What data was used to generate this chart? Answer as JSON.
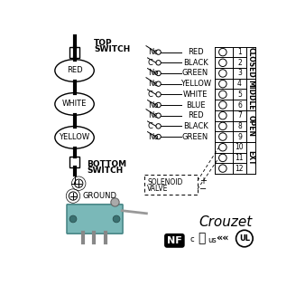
{
  "bg_color": "#ffffff",
  "wire_rows": [
    {
      "label": "Nc",
      "wire": "RED",
      "num": "1"
    },
    {
      "label": "C",
      "wire": "BLACK",
      "num": "2"
    },
    {
      "label": "No",
      "wire": "GREEN",
      "num": "3"
    },
    {
      "label": "Nc",
      "wire": "YELLOW",
      "num": "4"
    },
    {
      "label": "C",
      "wire": "WHITE",
      "num": "5"
    },
    {
      "label": "No",
      "wire": "BLUE",
      "num": "6"
    },
    {
      "label": "Nc",
      "wire": "RED",
      "num": "7"
    },
    {
      "label": "C",
      "wire": "BLACK",
      "num": "8"
    },
    {
      "label": "No",
      "wire": "GREEN",
      "num": "9"
    },
    {
      "label": "",
      "wire": "",
      "num": "10"
    },
    {
      "label": "",
      "wire": "",
      "num": "11"
    },
    {
      "label": "",
      "wire": "",
      "num": "12"
    }
  ],
  "section_labels": [
    {
      "text": "CLOSED",
      "rows": [
        0,
        1,
        2
      ]
    },
    {
      "text": "MIDDLE",
      "rows": [
        3,
        4,
        5
      ]
    },
    {
      "text": "OPEN",
      "rows": [
        6,
        7,
        8
      ]
    }
  ],
  "ext_label": {
    "text": "EXT",
    "rows": [
      9,
      10,
      11
    ]
  },
  "cam_labels": [
    "RED",
    "WHITE",
    "YELLOW"
  ],
  "top_switch_text": "TOP\nSWITCH",
  "bottom_switch_text": "BOTTOM\nSWITCH",
  "ground_text": "GROUND",
  "solenoid_text": "SOLENOID\nVALVE",
  "crouzet_text": "Crouzet"
}
